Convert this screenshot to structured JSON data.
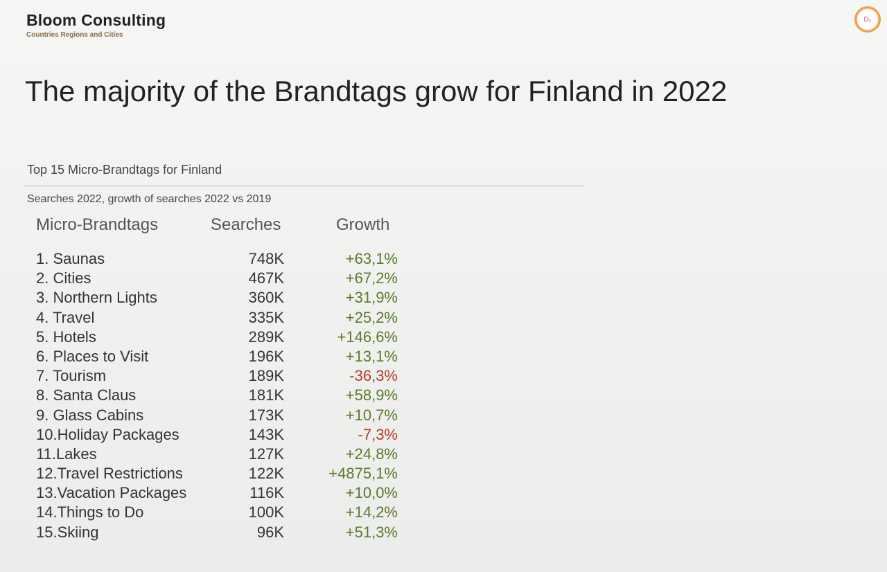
{
  "header": {
    "brand_name": "Bloom Consulting",
    "brand_subtitle": "Countries Regions and Cities",
    "badge_text": "D₂"
  },
  "headline": "The majority of the Brandtags grow for Finland in 2022",
  "table": {
    "title": "Top 15 Micro-Brandtags for Finland",
    "subtitle": "Searches 2022, growth of searches 2022 vs 2019",
    "columns": {
      "name": "Micro-Brandtags",
      "searches": "Searches",
      "growth": "Growth"
    },
    "rows": [
      {
        "name": "1. Saunas",
        "searches": "748K",
        "growth": "+63,1%",
        "trend": "positive"
      },
      {
        "name": "2. Cities",
        "searches": "467K",
        "growth": "+67,2%",
        "trend": "positive"
      },
      {
        "name": "3. Northern Lights",
        "searches": "360K",
        "growth": "+31,9%",
        "trend": "positive"
      },
      {
        "name": "4. Travel",
        "searches": "335K",
        "growth": "+25,2%",
        "trend": "positive"
      },
      {
        "name": "5. Hotels",
        "searches": "289K",
        "growth": "+146,6%",
        "trend": "positive"
      },
      {
        "name": "6. Places to Visit",
        "searches": "196K",
        "growth": "+13,1%",
        "trend": "positive"
      },
      {
        "name": "7. Tourism",
        "searches": "189K",
        "growth": "-36,3%",
        "trend": "negative"
      },
      {
        "name": "8. Santa Claus",
        "searches": "181K",
        "growth": "+58,9%",
        "trend": "positive"
      },
      {
        "name": "9. Glass Cabins",
        "searches": "173K",
        "growth": "+10,7%",
        "trend": "positive"
      },
      {
        "name": "10.Holiday Packages",
        "searches": "143K",
        "growth": "-7,3%",
        "trend": "negative"
      },
      {
        "name": "11.Lakes",
        "searches": "127K",
        "growth": "+24,8%",
        "trend": "positive"
      },
      {
        "name": "12.Travel Restrictions",
        "searches": "122K",
        "growth": "+4875,1%",
        "trend": "positive"
      },
      {
        "name": "13.Vacation Packages",
        "searches": "116K",
        "growth": "+10,0%",
        "trend": "positive"
      },
      {
        "name": "14.Things to Do",
        "searches": "100K",
        "growth": "+14,2%",
        "trend": "positive"
      },
      {
        "name": "15.Skiing",
        "searches": "96K",
        "growth": "+51,3%",
        "trend": "positive"
      }
    ]
  },
  "colors": {
    "positive": "#5a7a2a",
    "negative": "#b73a2a",
    "badge_ring": "#f2a23a"
  }
}
